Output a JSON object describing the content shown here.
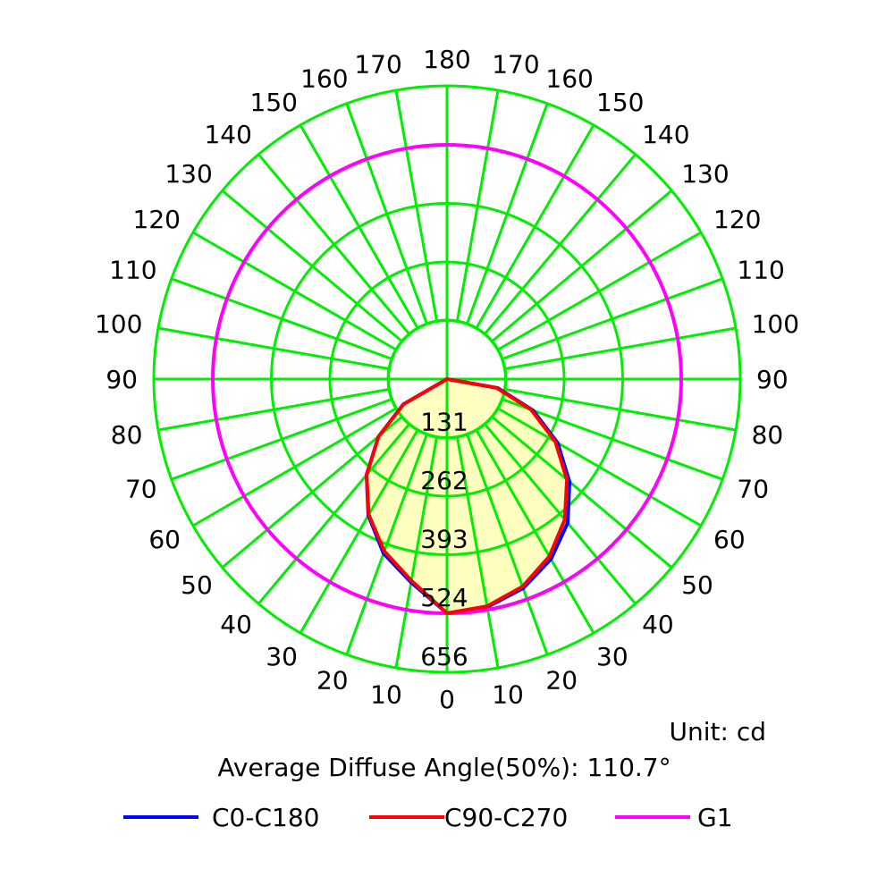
{
  "chart_data": {
    "type": "polar",
    "unit_text": "Unit: cd",
    "angle_text": "Average Diffuse Angle(50%): 110.7°",
    "angle_labels_left": [
      "0",
      "10",
      "20",
      "30",
      "40",
      "50",
      "60",
      "70",
      "80",
      "90",
      "100",
      "110",
      "120",
      "130",
      "140",
      "150",
      "160",
      "170",
      "180"
    ],
    "angle_labels_right": [
      "10",
      "20",
      "30",
      "40",
      "50",
      "60",
      "70",
      "80",
      "90",
      "100",
      "110",
      "120",
      "130",
      "140",
      "150",
      "160",
      "170"
    ],
    "radial_labels": [
      "131",
      "262",
      "393",
      "524",
      "656"
    ],
    "radial_max": 656,
    "grid_color": "#00ee00",
    "fill_color": "#ffffc0",
    "series": [
      {
        "name": "C0-C180",
        "color": "#0000ff",
        "angles": [
          0,
          10,
          20,
          30,
          40,
          50,
          60,
          70,
          80,
          90,
          100,
          110,
          120,
          130,
          140,
          150,
          160,
          170,
          180,
          190,
          200,
          210,
          220,
          230,
          240,
          250,
          260,
          270,
          280,
          290,
          300,
          310,
          320,
          330,
          340,
          350,
          360
        ],
        "values": [
          524,
          518,
          498,
          465,
          420,
          358,
          286,
          205,
          115,
          0,
          0,
          0,
          0,
          0,
          0,
          0,
          0,
          0,
          0,
          0,
          0,
          0,
          0,
          0,
          0,
          0,
          0,
          0,
          0,
          0,
          113,
          200,
          280,
          352,
          415,
          462,
          524
        ]
      },
      {
        "name": "C90-C270",
        "color": "#ff0000",
        "angles": [
          0,
          10,
          20,
          30,
          40,
          50,
          60,
          70,
          80,
          90,
          100,
          110,
          120,
          130,
          140,
          150,
          160,
          170,
          180,
          190,
          200,
          210,
          220,
          230,
          240,
          250,
          260,
          270,
          280,
          290,
          300,
          310,
          320,
          330,
          340,
          350,
          360
        ],
        "values": [
          524,
          516,
          494,
          458,
          410,
          350,
          280,
          200,
          112,
          0,
          0,
          0,
          0,
          0,
          0,
          0,
          0,
          0,
          0,
          0,
          0,
          0,
          0,
          0,
          0,
          0,
          0,
          0,
          0,
          0,
          112,
          200,
          280,
          350,
          410,
          458,
          524
        ]
      },
      {
        "name": "G1",
        "color": "#ff00ff",
        "constant": 524
      }
    ]
  }
}
